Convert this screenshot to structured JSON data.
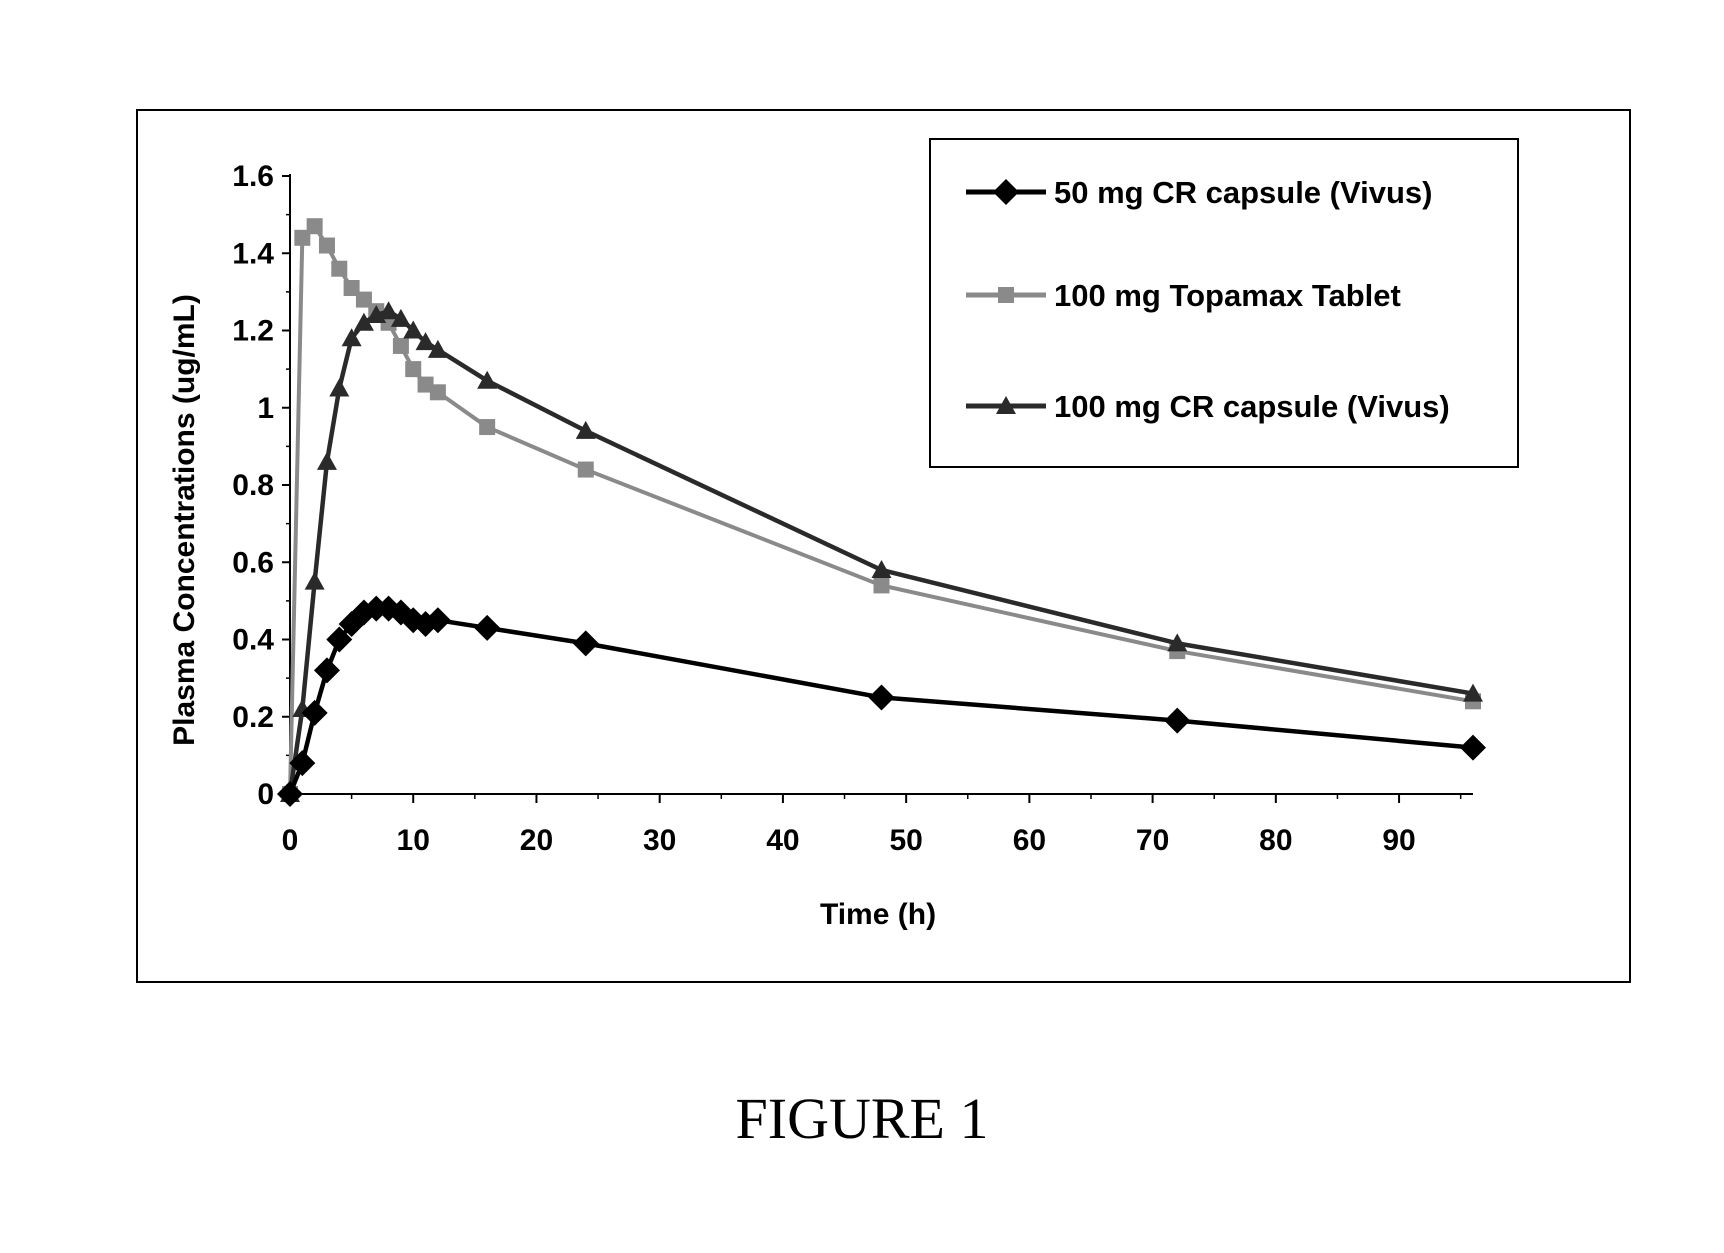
{
  "caption": "FIGURE 1",
  "chart_data": {
    "type": "line",
    "title": "",
    "xlabel": "Time (h)",
    "ylabel": "Plasma Concentrations (ug/mL)",
    "xlim": [
      0,
      96
    ],
    "ylim": [
      0,
      1.6
    ],
    "x_ticks": [
      0,
      10,
      20,
      30,
      40,
      50,
      60,
      70,
      80,
      90
    ],
    "y_ticks": [
      0,
      0.2,
      0.4,
      0.6,
      0.8,
      1,
      1.2,
      1.4,
      1.6
    ],
    "x_tick_labels": [
      "0",
      "10",
      "20",
      "30",
      "40",
      "50",
      "60",
      "70",
      "80",
      "90"
    ],
    "y_tick_labels": [
      "0",
      "0.2",
      "0.4",
      "0.6",
      "0.8",
      "1",
      "1.2",
      "1.4",
      "1.6"
    ],
    "grid": false,
    "legend_position": "top-right",
    "series": [
      {
        "name": "50 mg CR capsule (Vivus)",
        "color": "#000000",
        "marker": "diamond",
        "x": [
          0,
          1,
          2,
          3,
          4,
          5,
          6,
          7,
          8,
          9,
          10,
          11,
          12,
          16,
          24,
          48,
          72,
          96
        ],
        "y": [
          0,
          0.08,
          0.21,
          0.32,
          0.4,
          0.44,
          0.47,
          0.48,
          0.48,
          0.47,
          0.45,
          0.44,
          0.45,
          0.43,
          0.39,
          0.25,
          0.19,
          0.12
        ]
      },
      {
        "name": "100 mg Topamax Tablet",
        "color": "#8a8a8a",
        "marker": "square",
        "x": [
          0,
          1,
          2,
          3,
          4,
          5,
          6,
          7,
          8,
          9,
          10,
          11,
          12,
          16,
          24,
          48,
          72,
          96
        ],
        "y": [
          0,
          1.44,
          1.47,
          1.42,
          1.36,
          1.31,
          1.28,
          1.25,
          1.22,
          1.16,
          1.1,
          1.06,
          1.04,
          0.95,
          0.84,
          0.54,
          0.37,
          0.24
        ]
      },
      {
        "name": "100 mg CR capsule (Vivus)",
        "color": "#2a2a2a",
        "marker": "triangle",
        "x": [
          0,
          1,
          2,
          3,
          4,
          5,
          6,
          7,
          8,
          9,
          10,
          11,
          12,
          16,
          24,
          48,
          72,
          96
        ],
        "y": [
          0,
          0.22,
          0.55,
          0.86,
          1.05,
          1.18,
          1.22,
          1.24,
          1.25,
          1.23,
          1.2,
          1.17,
          1.15,
          1.07,
          0.94,
          0.58,
          0.39,
          0.26
        ]
      }
    ]
  }
}
